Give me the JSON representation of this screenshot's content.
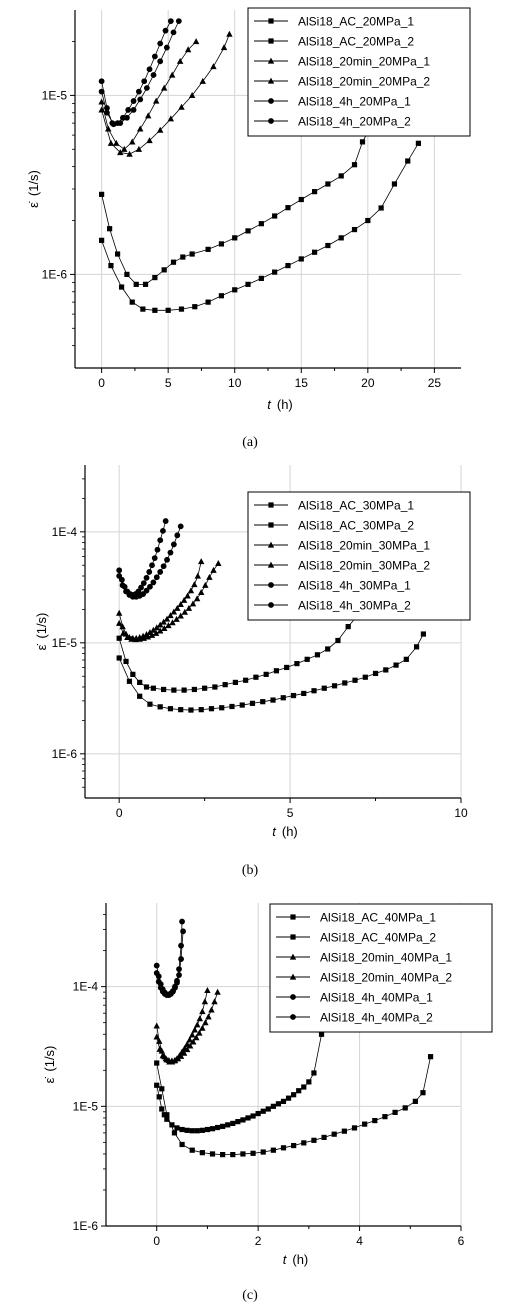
{
  "figure": {
    "panels": [
      {
        "caption": "(a)"
      },
      {
        "caption": "(b)"
      },
      {
        "caption": "(c)"
      }
    ]
  },
  "chart_data": [
    {
      "type": "scatter",
      "panel": "(a)",
      "xlabel_var": "t",
      "xlabel_unit": "(h)",
      "ylabel_symbol": "ε̇",
      "ylabel_unit": "(1/s)",
      "xlim": [
        -2,
        27
      ],
      "ylim": [
        3e-07,
        3e-05
      ],
      "yscale": "log",
      "xticks": [
        0,
        5,
        10,
        15,
        20,
        25
      ],
      "xtick_labels": [
        "0",
        "5",
        "10",
        "15",
        "20",
        "25"
      ],
      "yticks": [
        1e-06,
        1e-05
      ],
      "ytick_labels": [
        "1E-6",
        "1E-5"
      ],
      "grid": true,
      "legend_position": "top-right",
      "series": [
        {
          "name": "AlSi18_AC_20MPa_1",
          "marker": "square",
          "x": [
            0,
            0.6,
            1.2,
            1.9,
            2.6,
            3.3,
            4,
            4.7,
            5.4,
            6.1,
            6.8,
            8,
            9,
            10,
            11,
            12,
            13,
            14,
            15,
            16,
            17,
            18,
            19,
            19.6,
            20.5
          ],
          "y": [
            2.8e-06,
            1.8e-06,
            1.3e-06,
            1e-06,
            8.8e-07,
            8.8e-07,
            9.6e-07,
            1.06e-06,
            1.17e-06,
            1.25e-06,
            1.3e-06,
            1.38e-06,
            1.48e-06,
            1.6e-06,
            1.75e-06,
            1.92e-06,
            2.12e-06,
            2.36e-06,
            2.62e-06,
            2.9e-06,
            3.2e-06,
            3.55e-06,
            4.1e-06,
            5.5e-06,
            7.3e-06
          ]
        },
        {
          "name": "AlSi18_AC_20MPa_2",
          "marker": "square",
          "x": [
            0,
            0.7,
            1.5,
            2.3,
            3.1,
            4,
            5,
            6,
            7,
            8,
            9,
            10,
            11,
            12,
            13,
            14,
            15,
            16,
            17,
            18,
            19,
            20,
            21,
            22,
            23,
            23.8
          ],
          "y": [
            1.55e-06,
            1.12e-06,
            8.5e-07,
            7e-07,
            6.4e-07,
            6.3e-07,
            6.3e-07,
            6.4e-07,
            6.6e-07,
            7e-07,
            7.6e-07,
            8.2e-07,
            8.8e-07,
            9.5e-07,
            1.03e-06,
            1.12e-06,
            1.22e-06,
            1.33e-06,
            1.45e-06,
            1.6e-06,
            1.78e-06,
            2e-06,
            2.35e-06,
            3.2e-06,
            4.3e-06,
            5.4e-06
          ]
        },
        {
          "name": "AlSi18_20min_20MPa_1",
          "marker": "triangle",
          "x": [
            0,
            0.5,
            1.1,
            1.7,
            2.3,
            2.9,
            3.5,
            4.1,
            4.7,
            5.3,
            5.9,
            6.5,
            7.1
          ],
          "y": [
            9.2e-06,
            6.5e-06,
            5.4e-06,
            5e-06,
            5.5e-06,
            6.5e-06,
            7.7e-06,
            9.3e-06,
            1.1e-05,
            1.3e-05,
            1.55e-05,
            1.8e-05,
            2e-05
          ]
        },
        {
          "name": "AlSi18_20min_20MPa_2",
          "marker": "triangle",
          "x": [
            0,
            0.7,
            1.4,
            2.1,
            2.8,
            3.6,
            4.4,
            5.2,
            6,
            6.8,
            7.6,
            8.4,
            9.2,
            9.6
          ],
          "y": [
            8.3e-06,
            5.4e-06,
            4.8e-06,
            4.7e-06,
            5e-06,
            5.6e-06,
            6.4e-06,
            7.4e-06,
            8.6e-06,
            1e-05,
            1.2e-05,
            1.45e-05,
            1.85e-05,
            2.2e-05
          ]
        },
        {
          "name": "AlSi18_4h_20MPa_1",
          "marker": "circle",
          "x": [
            0,
            0.4,
            0.8,
            1.2,
            1.6,
            2,
            2.4,
            2.8,
            3.2,
            3.6,
            4,
            4.4,
            4.8,
            5.2
          ],
          "y": [
            1.2e-05,
            8.5e-06,
            7e-06,
            7e-06,
            7.5e-06,
            8.3e-06,
            9.3e-06,
            1.05e-05,
            1.2e-05,
            1.4e-05,
            1.65e-05,
            1.95e-05,
            2.3e-05,
            2.6e-05
          ]
        },
        {
          "name": "AlSi18_4h_20MPa_2",
          "marker": "circle",
          "x": [
            0,
            0.4,
            0.9,
            1.4,
            1.9,
            2.4,
            2.9,
            3.4,
            3.9,
            4.4,
            4.9,
            5.4,
            5.8
          ],
          "y": [
            1.05e-05,
            8e-06,
            6.9e-06,
            7e-06,
            7.5e-06,
            8.3e-06,
            9.5e-06,
            1.1e-05,
            1.3e-05,
            1.55e-05,
            1.85e-05,
            2.25e-05,
            2.6e-05
          ]
        }
      ]
    },
    {
      "type": "scatter",
      "panel": "(b)",
      "xlabel_var": "t",
      "xlabel_unit": "(h)",
      "ylabel_symbol": "ε̇",
      "ylabel_unit": "(1/s)",
      "xlim": [
        -1,
        10
      ],
      "ylim": [
        4e-07,
        0.0004
      ],
      "yscale": "log",
      "xticks": [
        0,
        5,
        10
      ],
      "xtick_labels": [
        "0",
        "5",
        "10"
      ],
      "yticks": [
        1e-06,
        1e-05,
        0.0001
      ],
      "ytick_labels": [
        "1E-6",
        "1E-5",
        "1E-4"
      ],
      "grid": true,
      "legend_position": "top-right",
      "series": [
        {
          "name": "AlSi18_AC_30MPa_1",
          "marker": "square",
          "x": [
            0,
            0.2,
            0.4,
            0.6,
            0.8,
            1.0,
            1.3,
            1.6,
            1.9,
            2.2,
            2.5,
            2.8,
            3.1,
            3.4,
            3.7,
            4.0,
            4.3,
            4.6,
            4.9,
            5.2,
            5.5,
            5.8,
            6.1,
            6.4,
            6.7,
            7.0
          ],
          "y": [
            1.1e-05,
            6.8e-06,
            5.2e-06,
            4.4e-06,
            4e-06,
            3.9e-06,
            3.8e-06,
            3.75e-06,
            3.75e-06,
            3.8e-06,
            3.9e-06,
            4e-06,
            4.2e-06,
            4.4e-06,
            4.6e-06,
            4.9e-06,
            5.2e-06,
            5.6e-06,
            6e-06,
            6.5e-06,
            7.1e-06,
            7.8e-06,
            8.8e-06,
            1.05e-05,
            1.4e-05,
            1.8e-05
          ]
        },
        {
          "name": "AlSi18_AC_30MPa_2",
          "marker": "square",
          "x": [
            0,
            0.3,
            0.6,
            0.9,
            1.2,
            1.5,
            1.8,
            2.1,
            2.4,
            2.7,
            3.0,
            3.3,
            3.6,
            3.9,
            4.2,
            4.5,
            4.8,
            5.1,
            5.4,
            5.7,
            6.0,
            6.3,
            6.6,
            6.9,
            7.2,
            7.5,
            7.8,
            8.1,
            8.4,
            8.7,
            8.9
          ],
          "y": [
            7.3e-06,
            4.5e-06,
            3.3e-06,
            2.8e-06,
            2.65e-06,
            2.55e-06,
            2.5e-06,
            2.48e-06,
            2.5e-06,
            2.55e-06,
            2.6e-06,
            2.67e-06,
            2.75e-06,
            2.85e-06,
            2.95e-06,
            3.05e-06,
            3.2e-06,
            3.35e-06,
            3.5e-06,
            3.7e-06,
            3.9e-06,
            4.1e-06,
            4.35e-06,
            4.6e-06,
            4.9e-06,
            5.3e-06,
            5.7e-06,
            6.3e-06,
            7.1e-06,
            9.2e-06,
            1.2e-05
          ]
        },
        {
          "name": "AlSi18_20min_30MPa_1",
          "marker": "triangle",
          "x": [
            0,
            0.1,
            0.2,
            0.3,
            0.4,
            0.5,
            0.6,
            0.7,
            0.8,
            0.9,
            1.0,
            1.1,
            1.2,
            1.3,
            1.4,
            1.5,
            1.6,
            1.7,
            1.8,
            1.9,
            2.0,
            2.1,
            2.2,
            2.3,
            2.4
          ],
          "y": [
            1.85e-05,
            1.4e-05,
            1.2e-05,
            1.12e-05,
            1.1e-05,
            1.1e-05,
            1.12e-05,
            1.15e-05,
            1.19e-05,
            1.24e-05,
            1.3e-05,
            1.37e-05,
            1.45e-05,
            1.54e-05,
            1.64e-05,
            1.76e-05,
            1.9e-05,
            2.05e-05,
            2.22e-05,
            2.42e-05,
            2.65e-05,
            2.95e-05,
            3.35e-05,
            4e-05,
            5.4e-05
          ]
        },
        {
          "name": "AlSi18_20min_30MPa_2",
          "marker": "triangle",
          "x": [
            0,
            0.12,
            0.24,
            0.36,
            0.48,
            0.6,
            0.72,
            0.84,
            0.96,
            1.08,
            1.2,
            1.32,
            1.44,
            1.56,
            1.68,
            1.8,
            1.92,
            2.04,
            2.16,
            2.28,
            2.4,
            2.52,
            2.64,
            2.76,
            2.9
          ],
          "y": [
            1.5e-05,
            1.22e-05,
            1.12e-05,
            1.08e-05,
            1.07e-05,
            1.08e-05,
            1.1e-05,
            1.13e-05,
            1.17e-05,
            1.22e-05,
            1.28e-05,
            1.35e-05,
            1.43e-05,
            1.52e-05,
            1.63e-05,
            1.75e-05,
            1.89e-05,
            2.05e-05,
            2.25e-05,
            2.5e-05,
            2.85e-05,
            3.3e-05,
            3.9e-05,
            4.5e-05,
            5.2e-05
          ]
        },
        {
          "name": "AlSi18_4h_30MPa_1",
          "marker": "circle",
          "x": [
            0,
            0.08,
            0.16,
            0.24,
            0.32,
            0.4,
            0.48,
            0.56,
            0.64,
            0.72,
            0.8,
            0.88,
            0.96,
            1.04,
            1.12,
            1.2,
            1.28,
            1.36
          ],
          "y": [
            4.5e-05,
            3.7e-05,
            3.2e-05,
            2.9e-05,
            2.75e-05,
            2.7e-05,
            2.75e-05,
            2.9e-05,
            3.15e-05,
            3.45e-05,
            3.85e-05,
            4.35e-05,
            5e-05,
            5.8e-05,
            6.9e-05,
            8.4e-05,
            0.000102,
            0.000125
          ]
        },
        {
          "name": "AlSi18_4h_30MPa_2",
          "marker": "circle",
          "x": [
            0,
            0.1,
            0.2,
            0.3,
            0.4,
            0.5,
            0.6,
            0.7,
            0.8,
            0.9,
            1.0,
            1.1,
            1.2,
            1.3,
            1.4,
            1.5,
            1.6,
            1.7,
            1.8
          ],
          "y": [
            4e-05,
            3.3e-05,
            2.9e-05,
            2.7e-05,
            2.6e-05,
            2.6e-05,
            2.65e-05,
            2.75e-05,
            2.95e-05,
            3.2e-05,
            3.5e-05,
            3.9e-05,
            4.35e-05,
            4.9e-05,
            5.6e-05,
            6.5e-05,
            7.7e-05,
            9.3e-05,
            0.000112
          ]
        }
      ]
    },
    {
      "type": "scatter",
      "panel": "(c)",
      "xlabel_var": "t",
      "xlabel_unit": "(h)",
      "ylabel_symbol": "ε̇",
      "ylabel_unit": "(1/s)",
      "xlim": [
        -1,
        6
      ],
      "ylim": [
        1e-06,
        0.0005
      ],
      "yscale": "log",
      "xticks": [
        0,
        2,
        4,
        6
      ],
      "xtick_labels": [
        "0",
        "2",
        "4",
        "6"
      ],
      "yticks": [
        1e-06,
        1e-05,
        0.0001
      ],
      "ytick_labels": [
        "1E-6",
        "1E-5",
        "1E-4"
      ],
      "grid": true,
      "legend_position": "top-right",
      "series": [
        {
          "name": "AlSi18_AC_40MPa_1",
          "marker": "square",
          "x": [
            0,
            0.05,
            0.1,
            0.15,
            0.2,
            0.3,
            0.4,
            0.5,
            0.6,
            0.7,
            0.8,
            0.9,
            1.0,
            1.1,
            1.2,
            1.3,
            1.4,
            1.5,
            1.6,
            1.7,
            1.8,
            1.9,
            2.0,
            2.1,
            2.2,
            2.3,
            2.4,
            2.5,
            2.6,
            2.7,
            2.8,
            2.9,
            3.0,
            3.1,
            3.25
          ],
          "y": [
            1.5e-05,
            1.2e-05,
            9.5e-06,
            8.5e-06,
            7.8e-06,
            7e-06,
            6.6e-06,
            6.4e-06,
            6.3e-06,
            6.25e-06,
            6.25e-06,
            6.3e-06,
            6.4e-06,
            6.5e-06,
            6.65e-06,
            6.8e-06,
            7e-06,
            7.2e-06,
            7.45e-06,
            7.7e-06,
            8e-06,
            8.3e-06,
            8.7e-06,
            9.1e-06,
            9.5e-06,
            1e-05,
            1.05e-05,
            1.1e-05,
            1.17e-05,
            1.25e-05,
            1.35e-05,
            1.45e-05,
            1.6e-05,
            1.9e-05,
            4e-05
          ]
        },
        {
          "name": "AlSi18_AC_40MPa_2",
          "marker": "square",
          "x": [
            0,
            0.1,
            0.2,
            0.35,
            0.5,
            0.7,
            0.9,
            1.1,
            1.3,
            1.5,
            1.7,
            1.9,
            2.1,
            2.3,
            2.5,
            2.7,
            2.9,
            3.1,
            3.3,
            3.5,
            3.7,
            3.9,
            4.1,
            4.3,
            4.5,
            4.7,
            4.9,
            5.1,
            5.25,
            5.4
          ],
          "y": [
            2.3e-05,
            1.4e-05,
            8.5e-06,
            6e-06,
            4.8e-06,
            4.3e-06,
            4.1e-06,
            4e-06,
            3.95e-06,
            3.95e-06,
            4e-06,
            4.05e-06,
            4.15e-06,
            4.3e-06,
            4.5e-06,
            4.7e-06,
            4.95e-06,
            5.2e-06,
            5.5e-06,
            5.85e-06,
            6.2e-06,
            6.6e-06,
            7.1e-06,
            7.6e-06,
            8.2e-06,
            8.9e-06,
            9.7e-06,
            1.1e-05,
            1.3e-05,
            2.6e-05
          ]
        },
        {
          "name": "AlSi18_20min_40MPa_1",
          "marker": "triangle",
          "x": [
            0,
            0.05,
            0.1,
            0.15,
            0.2,
            0.25,
            0.3,
            0.35,
            0.4,
            0.45,
            0.5,
            0.55,
            0.6,
            0.65,
            0.7,
            0.75,
            0.8,
            0.85,
            0.9,
            0.95,
            1.0
          ],
          "y": [
            4.7e-05,
            3.5e-05,
            2.9e-05,
            2.6e-05,
            2.45e-05,
            2.35e-05,
            2.35e-05,
            2.4e-05,
            2.5e-05,
            2.65e-05,
            2.85e-05,
            3.05e-05,
            3.3e-05,
            3.6e-05,
            3.95e-05,
            4.35e-05,
            4.8e-05,
            5.4e-05,
            6.2e-05,
            7.5e-05,
            9.3e-05
          ]
        },
        {
          "name": "AlSi18_20min_40MPa_2",
          "marker": "triangle",
          "x": [
            0,
            0.06,
            0.12,
            0.18,
            0.24,
            0.3,
            0.36,
            0.42,
            0.48,
            0.54,
            0.6,
            0.66,
            0.72,
            0.78,
            0.84,
            0.9,
            0.96,
            1.02,
            1.08,
            1.14,
            1.2
          ],
          "y": [
            3.8e-05,
            3e-05,
            2.65e-05,
            2.5e-05,
            2.42e-05,
            2.4e-05,
            2.42e-05,
            2.5e-05,
            2.62e-05,
            2.78e-05,
            2.98e-05,
            3.2e-05,
            3.45e-05,
            3.75e-05,
            4.1e-05,
            4.5e-05,
            5e-05,
            5.6e-05,
            6.4e-05,
            7.5e-05,
            9e-05
          ]
        },
        {
          "name": "AlSi18_4h_40MPa_1",
          "marker": "circle",
          "x": [
            0,
            0.04,
            0.08,
            0.12,
            0.16,
            0.2,
            0.24,
            0.28,
            0.32,
            0.36,
            0.4,
            0.44,
            0.48,
            0.5
          ],
          "y": [
            0.00015,
            0.000122,
            0.000105,
            9.5e-05,
            8.9e-05,
            8.6e-05,
            8.6e-05,
            8.8e-05,
            9.2e-05,
            0.0001,
            0.000112,
            0.00014,
            0.00022,
            0.00035
          ]
        },
        {
          "name": "AlSi18_4h_40MPa_2",
          "marker": "circle",
          "x": [
            0,
            0.04,
            0.08,
            0.12,
            0.16,
            0.2,
            0.24,
            0.28,
            0.32,
            0.36,
            0.4,
            0.44,
            0.48,
            0.52
          ],
          "y": [
            0.00013,
            0.00011,
            9.8e-05,
            9.1e-05,
            8.7e-05,
            8.5e-05,
            8.5e-05,
            8.7e-05,
            9.1e-05,
            9.8e-05,
            0.000108,
            0.000125,
            0.00017,
            0.00029
          ]
        }
      ]
    }
  ]
}
